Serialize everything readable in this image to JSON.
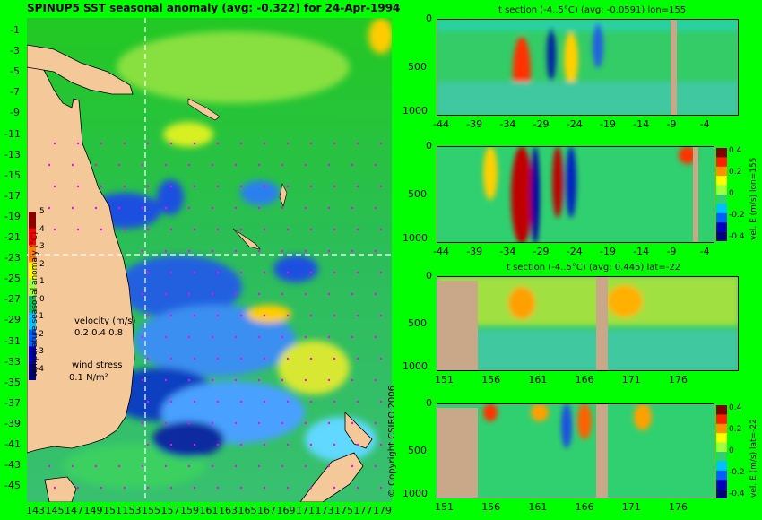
{
  "main_map": {
    "title": "SPINUP5  SST  seasonal  anomaly  (avg: -0.322)  for 24-Apr-1994",
    "lat_ticks": [
      "-1",
      "-3",
      "-5",
      "-7",
      "-9",
      "-11",
      "-13",
      "-15",
      "-17",
      "-19",
      "-21",
      "-23",
      "-25",
      "-27",
      "-29",
      "-31",
      "-33",
      "-35",
      "-37",
      "-39",
      "-41",
      "-43",
      "-45"
    ],
    "lon_ticks": [
      "143",
      "145",
      "147",
      "149",
      "151",
      "153",
      "155",
      "157",
      "159",
      "161",
      "163",
      "165",
      "167",
      "169",
      "171",
      "173",
      "175",
      "177",
      "179"
    ],
    "section_lon": 155,
    "section_lat": -22,
    "colorbar": {
      "label": "temperature seasonal anomaly (°C)",
      "ticks": [
        "5",
        "4",
        "3",
        "2",
        "1",
        "0",
        "-1",
        "-2",
        "-3",
        "-4"
      ],
      "colors": [
        "#8b0000",
        "#ff0000",
        "#ff8000",
        "#ffff00",
        "#a0ff40",
        "#00c060",
        "#00c0ff",
        "#0060ff",
        "#0000c0",
        "#000080"
      ]
    },
    "velocity_legend": {
      "title": "velocity (m/s)",
      "values": "0.2 0.4 0.8"
    },
    "wind_legend": {
      "title": "wind stress",
      "value": "0.1  N/m²"
    }
  },
  "panels": [
    {
      "title": "t section (-4..5°C) (avg: -0.0591) lon=155",
      "y_ticks": [
        "0",
        "500",
        "1000"
      ],
      "x_ticks": [
        "-44",
        "-39",
        "-34",
        "-29",
        "-24",
        "-19",
        "-14",
        "-9",
        "-4"
      ],
      "colorbar_label": "",
      "colorbar_ticks": []
    },
    {
      "title": "",
      "y_ticks": [
        "0",
        "500",
        "1000"
      ],
      "x_ticks": [
        "-44",
        "-39",
        "-34",
        "-29",
        "-24",
        "-19",
        "-14",
        "-9",
        "-4"
      ],
      "colorbar_label": "vel. E (m/s) lon=155",
      "colorbar_ticks": [
        "0.4",
        "0.2",
        "0",
        "-0.2",
        "-0.4"
      ]
    },
    {
      "title": "t section (-4..5°C) (avg: 0.445) lat=-22",
      "y_ticks": [
        "0",
        "500",
        "1000"
      ],
      "x_ticks": [
        "151",
        "156",
        "161",
        "166",
        "171",
        "176"
      ],
      "colorbar_label": "",
      "colorbar_ticks": []
    },
    {
      "title": "",
      "y_ticks": [
        "0",
        "500",
        "1000"
      ],
      "x_ticks": [
        "151",
        "156",
        "161",
        "166",
        "171",
        "176"
      ],
      "colorbar_label": "vel. E (m/s) lat=-22",
      "colorbar_ticks": [
        "0.4",
        "0.2",
        "0",
        "-0.2",
        "-0.4"
      ]
    }
  ],
  "copyright": "© Copyright CSIRO 2006",
  "colors": {
    "background": "#00ff00",
    "land": "#f5c89a",
    "section_land": "#c8a888",
    "ocean": "#33cc33",
    "cold": "#0033cc",
    "warm": "#ffcc00",
    "dashed_line": "#ffffff"
  }
}
